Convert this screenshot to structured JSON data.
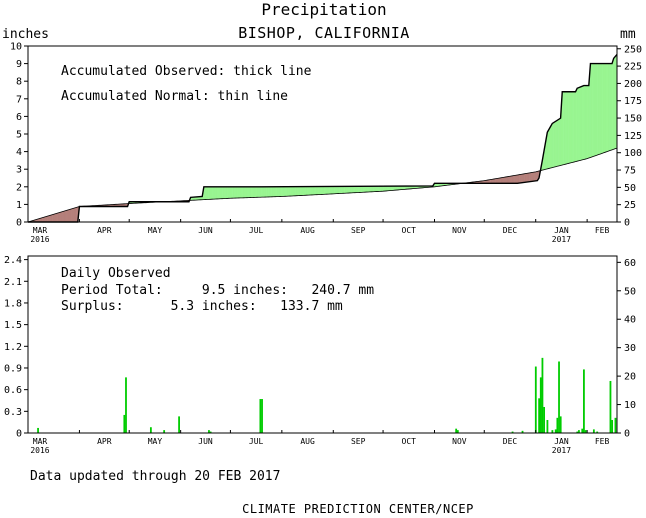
{
  "title": "Precipitation",
  "subtitle": "BISHOP, CALIFORNIA",
  "top_panel": {
    "left_unit": "inches",
    "right_unit": "mm",
    "note_lines": [
      "Accumulated Observed: thick line",
      "Accumulated Normal: thin line"
    ]
  },
  "bottom_panel": {
    "note_lines": [
      "Daily Observed",
      "Period Total:     9.5 inches:   240.7 mm",
      "Surplus:      5.3 inches:   133.7 mm"
    ]
  },
  "footer": "Data updated through 20 FEB 2017",
  "credit": "CLIMATE PREDICTION CENTER/NCEP",
  "colors": {
    "surplus": "#98f590",
    "deficit": "#b47f7a",
    "daily_bar": "#00cc00"
  },
  "chart_data": [
    {
      "type": "area",
      "x_labels": [
        "MAR",
        "APR",
        "MAY",
        "JUN",
        "JUL",
        "AUG",
        "SEP",
        "OCT",
        "NOV",
        "DEC",
        "JAN",
        "FEB"
      ],
      "x_year_labels": [
        {
          "month": "MAR",
          "year": "2016"
        },
        {
          "month": "JAN",
          "year": "2017"
        }
      ],
      "y_left_ticks": [
        "0",
        "1",
        "2",
        "3",
        "4",
        "5",
        "6",
        "7",
        "8",
        "9",
        "10"
      ],
      "y_right_ticks": [
        "0",
        "25",
        "50",
        "75",
        "100",
        "125",
        "150",
        "175",
        "200",
        "225",
        "250"
      ],
      "ylim_inches": [
        0,
        10
      ],
      "x_unit": "days since 1 Mar 2016",
      "series": [
        {
          "name": "Accumulated Observed",
          "points": [
            [
              0,
              0
            ],
            [
              30,
              0
            ],
            [
              31,
              0.88
            ],
            [
              60,
              0.88
            ],
            [
              61,
              1.15
            ],
            [
              97,
              1.15
            ],
            [
              98,
              1.4
            ],
            [
              105,
              1.45
            ],
            [
              106,
              2.0
            ],
            [
              141,
              2.0
            ],
            [
              244,
              2.05
            ],
            [
              245,
              2.2
            ],
            [
              295,
              2.2
            ],
            [
              307,
              2.35
            ],
            [
              308,
              2.5
            ],
            [
              309,
              3.0
            ],
            [
              310,
              3.5
            ],
            [
              313,
              5.1
            ],
            [
              316,
              5.6
            ],
            [
              321,
              5.9
            ],
            [
              322,
              7.4
            ],
            [
              330,
              7.4
            ],
            [
              331,
              7.6
            ],
            [
              335,
              7.75
            ],
            [
              338,
              7.75
            ],
            [
              339,
              9.0
            ],
            [
              352,
              9.0
            ],
            [
              353,
              9.3
            ],
            [
              355,
              9.52
            ]
          ]
        },
        {
          "name": "Accumulated Normal",
          "points": [
            [
              0,
              0
            ],
            [
              31,
              0.88
            ],
            [
              61,
              1.05
            ],
            [
              92,
              1.2
            ],
            [
              122,
              1.35
            ],
            [
              153,
              1.45
            ],
            [
              184,
              1.6
            ],
            [
              214,
              1.75
            ],
            [
              245,
              2.0
            ],
            [
              275,
              2.35
            ],
            [
              306,
              2.85
            ],
            [
              337,
              3.6
            ],
            [
              355,
              4.2
            ]
          ]
        }
      ]
    },
    {
      "type": "bar",
      "y_left_ticks": [
        "0",
        "0.3",
        "0.6",
        "0.9",
        "1.2",
        "1.5",
        "1.8",
        "2.1",
        "2.4"
      ],
      "y_right_ticks": [
        "0",
        "10",
        "20",
        "30",
        "40",
        "50",
        "60"
      ],
      "ylim_inches": [
        0,
        2.45
      ],
      "x_unit": "days since 1 Mar 2016",
      "bars": [
        [
          6,
          0.07
        ],
        [
          58,
          0.25
        ],
        [
          59,
          0.77
        ],
        [
          74,
          0.08
        ],
        [
          82,
          0.04
        ],
        [
          91,
          0.23
        ],
        [
          109,
          0.04
        ],
        [
          110,
          0.02
        ],
        [
          140,
          0.47
        ],
        [
          141,
          0.47
        ],
        [
          258,
          0.06
        ],
        [
          259,
          0.04
        ],
        [
          292,
          0.02
        ],
        [
          298,
          0.03
        ],
        [
          306,
          0.92
        ],
        [
          308,
          0.48
        ],
        [
          309,
          0.77
        ],
        [
          310,
          1.04
        ],
        [
          311,
          0.36
        ],
        [
          313,
          0.18
        ],
        [
          316,
          0.04
        ],
        [
          318,
          0.05
        ],
        [
          319,
          0.21
        ],
        [
          320,
          0.99
        ],
        [
          321,
          0.23
        ],
        [
          331,
          0.02
        ],
        [
          332,
          0.04
        ],
        [
          334,
          0.06
        ],
        [
          335,
          0.88
        ],
        [
          336,
          0.04
        ],
        [
          341,
          0.05
        ],
        [
          343,
          0.02
        ],
        [
          351,
          0.72
        ],
        [
          352,
          0.18
        ],
        [
          354,
          0.21
        ]
      ]
    }
  ]
}
